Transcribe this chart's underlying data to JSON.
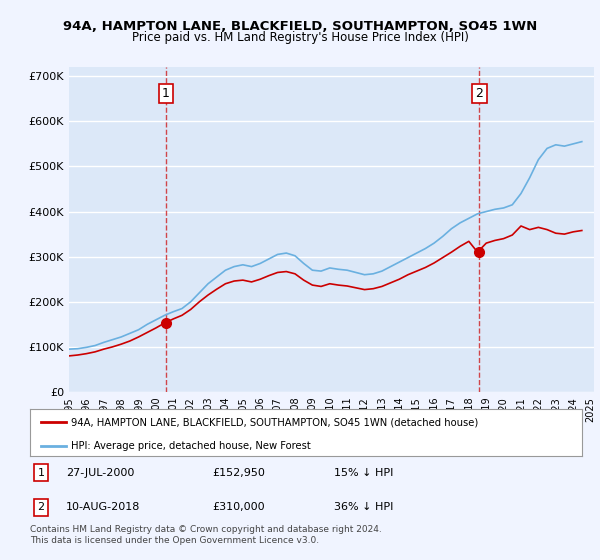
{
  "title_line1": "94A, HAMPTON LANE, BLACKFIELD, SOUTHAMPTON, SO45 1WN",
  "title_line2": "Price paid vs. HM Land Registry's House Price Index (HPI)",
  "xlabel": "",
  "ylabel": "",
  "ylim": [
    0,
    720000
  ],
  "yticks": [
    0,
    100000,
    200000,
    300000,
    400000,
    500000,
    600000,
    700000
  ],
  "ytick_labels": [
    "£0",
    "£100K",
    "£200K",
    "£300K",
    "£400K",
    "£500K",
    "£600K",
    "£700K"
  ],
  "background_color": "#f0f4ff",
  "plot_bg_color": "#dce8f8",
  "grid_color": "#ffffff",
  "hpi_color": "#6ab0e0",
  "price_color": "#cc0000",
  "dashed_color": "#cc0000",
  "marker_color": "#cc0000",
  "sale1": {
    "date": 2000.57,
    "price": 152950,
    "label": "1"
  },
  "sale2": {
    "date": 2018.61,
    "price": 310000,
    "label": "2"
  },
  "legend_line1": "94A, HAMPTON LANE, BLACKFIELD, SOUTHAMPTON, SO45 1WN (detached house)",
  "legend_line2": "HPI: Average price, detached house, New Forest",
  "note_line1": "1     27-JUL-2000          £152,950          15% ↓ HPI",
  "note_line2": "2     10-AUG-2018          £310,000          36% ↓ HPI",
  "footer": "Contains HM Land Registry data © Crown copyright and database right 2024.\nThis data is licensed under the Open Government Licence v3.0.",
  "hpi_x": [
    1995.0,
    1995.5,
    1996.0,
    1996.5,
    1997.0,
    1997.5,
    1998.0,
    1998.5,
    1999.0,
    1999.5,
    2000.0,
    2000.5,
    2001.0,
    2001.5,
    2002.0,
    2002.5,
    2003.0,
    2003.5,
    2004.0,
    2004.5,
    2005.0,
    2005.5,
    2006.0,
    2006.5,
    2007.0,
    2007.5,
    2008.0,
    2008.5,
    2009.0,
    2009.5,
    2010.0,
    2010.5,
    2011.0,
    2011.5,
    2012.0,
    2012.5,
    2013.0,
    2013.5,
    2014.0,
    2014.5,
    2015.0,
    2015.5,
    2016.0,
    2016.5,
    2017.0,
    2017.5,
    2018.0,
    2018.5,
    2019.0,
    2019.5,
    2020.0,
    2020.5,
    2021.0,
    2021.5,
    2022.0,
    2022.5,
    2023.0,
    2023.5,
    2024.0,
    2024.5
  ],
  "hpi_y": [
    95000,
    96000,
    99000,
    103000,
    110000,
    116000,
    122000,
    130000,
    138000,
    150000,
    160000,
    170000,
    178000,
    185000,
    200000,
    220000,
    240000,
    255000,
    270000,
    278000,
    282000,
    278000,
    285000,
    295000,
    305000,
    308000,
    302000,
    285000,
    270000,
    268000,
    275000,
    272000,
    270000,
    265000,
    260000,
    262000,
    268000,
    278000,
    288000,
    298000,
    308000,
    318000,
    330000,
    345000,
    362000,
    375000,
    385000,
    395000,
    400000,
    405000,
    408000,
    415000,
    440000,
    475000,
    515000,
    540000,
    548000,
    545000,
    550000,
    555000
  ],
  "price_x": [
    1995.0,
    1995.5,
    1996.0,
    1996.5,
    1997.0,
    1997.5,
    1998.0,
    1998.5,
    1999.0,
    1999.5,
    2000.0,
    2000.5,
    2001.0,
    2001.5,
    2002.0,
    2002.5,
    2003.0,
    2003.5,
    2004.0,
    2004.5,
    2005.0,
    2005.5,
    2006.0,
    2006.5,
    2007.0,
    2007.5,
    2008.0,
    2008.5,
    2009.0,
    2009.5,
    2010.0,
    2010.5,
    2011.0,
    2011.5,
    2012.0,
    2012.5,
    2013.0,
    2013.5,
    2014.0,
    2014.5,
    2015.0,
    2015.5,
    2016.0,
    2016.5,
    2017.0,
    2017.5,
    2018.0,
    2018.5,
    2019.0,
    2019.5,
    2020.0,
    2020.5,
    2021.0,
    2021.5,
    2022.0,
    2022.5,
    2023.0,
    2023.5,
    2024.0,
    2024.5
  ],
  "price_y": [
    80000,
    82000,
    85000,
    89000,
    95000,
    100000,
    106000,
    113000,
    122000,
    132000,
    142000,
    152950,
    162000,
    170000,
    183000,
    200000,
    215000,
    228000,
    240000,
    246000,
    248000,
    244000,
    250000,
    258000,
    265000,
    267000,
    262000,
    248000,
    237000,
    234000,
    240000,
    237000,
    235000,
    231000,
    227000,
    229000,
    234000,
    242000,
    250000,
    260000,
    268000,
    276000,
    286000,
    298000,
    310000,
    323000,
    334000,
    310000,
    330000,
    336000,
    340000,
    348000,
    368000,
    360000,
    365000,
    360000,
    352000,
    350000,
    355000,
    358000
  ]
}
